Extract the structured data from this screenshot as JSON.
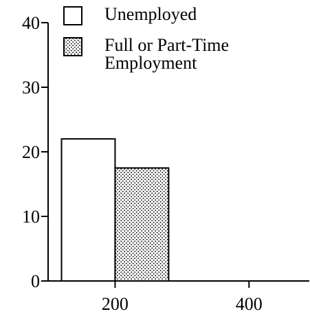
{
  "chart_data": {
    "type": "histogram",
    "series": [
      {
        "name": "Unemployed",
        "color": "#ffffff",
        "bins": [
          120,
          200
        ],
        "values": [
          22
        ]
      },
      {
        "name": "Full or Part-Time Employment",
        "color": "#ffffff",
        "hatch": "dots",
        "bins": [
          200,
          280
        ],
        "values": [
          17.5
        ]
      }
    ],
    "xlim": [
      100,
      490
    ],
    "xticks": [
      200,
      400
    ],
    "ylim": [
      0,
      40
    ],
    "yticks": [
      0,
      10,
      20,
      30,
      40
    ],
    "legend": "top-left"
  }
}
